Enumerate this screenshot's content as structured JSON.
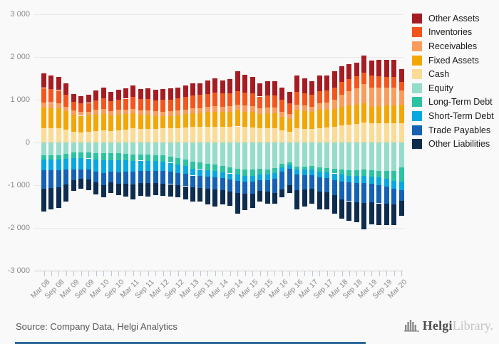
{
  "chart_data": {
    "type": "bar",
    "stacked": true,
    "title": "",
    "xlabel": "",
    "ylabel": "",
    "ylim": [
      -3000,
      3000
    ],
    "grid": true,
    "legend_position": "right",
    "x_label_every": 2,
    "yticks": [
      {
        "v": 3000,
        "label": "3 000"
      },
      {
        "v": 2000,
        "label": "2 000"
      },
      {
        "v": 1000,
        "label": "1 000"
      },
      {
        "v": 0,
        "label": "0"
      },
      {
        "v": -1000,
        "label": "-1 000"
      },
      {
        "v": -2000,
        "label": "-2 000"
      },
      {
        "v": -3000,
        "label": "-3 000"
      }
    ],
    "categories": [
      "Mar 08",
      "Jun 08",
      "Sep 08",
      "Dec 08",
      "Mar 09",
      "Jun 09",
      "Sep 09",
      "Dec 09",
      "Mar 10",
      "Jun 10",
      "Sep 10",
      "Dec 10",
      "Mar 11",
      "Jun 11",
      "Sep 11",
      "Dec 11",
      "Mar 12",
      "Jun 12",
      "Sep 12",
      "Dec 12",
      "Mar 13",
      "Jun 13",
      "Sep 13",
      "Dec 13",
      "Mar 14",
      "Jun 14",
      "Sep 14",
      "Dec 14",
      "Mar 15",
      "Jun 15",
      "Sep 15",
      "Dec 15",
      "Mar 16",
      "Jun 16",
      "Sep 16",
      "Dec 16",
      "Mar 17",
      "Jun 17",
      "Sep 17",
      "Dec 17",
      "Mar 18",
      "Jun 18",
      "Sep 18",
      "Dec 18",
      "Mar 19",
      "Jun 19",
      "Sep 19",
      "Dec 19",
      "Mar 20"
    ],
    "series": [
      {
        "name": "Other Assets",
        "color": "#a51d23",
        "side": "assets",
        "values": [
          335,
          315,
          305,
          270,
          185,
          170,
          185,
          230,
          250,
          215,
          235,
          245,
          260,
          235,
          242,
          240,
          250,
          252,
          260,
          270,
          283,
          280,
          310,
          335,
          305,
          337,
          455,
          415,
          385,
          315,
          335,
          335,
          287,
          274,
          370,
          345,
          320,
          360,
          350,
          375,
          380,
          350,
          310,
          390,
          350,
          380,
          390,
          410,
          302
        ]
      },
      {
        "name": "Inventories",
        "color": "#f4551c",
        "side": "assets",
        "values": [
          335,
          320,
          315,
          280,
          210,
          195,
          200,
          230,
          250,
          230,
          245,
          255,
          280,
          260,
          265,
          262,
          275,
          278,
          285,
          290,
          305,
          305,
          310,
          315,
          310,
          308,
          320,
          305,
          300,
          280,
          290,
          290,
          270,
          250,
          300,
          290,
          280,
          290,
          290,
          290,
          290,
          285,
          280,
          280,
          280,
          270,
          260,
          250,
          195
        ]
      },
      {
        "name": "Receivables",
        "color": "#fa9d5c",
        "side": "assets",
        "values": [
          120,
          120,
          115,
          110,
          95,
          90,
          95,
          105,
          110,
          100,
          105,
          105,
          110,
          105,
          108,
          108,
          110,
          110,
          110,
          110,
          112,
          115,
          120,
          125,
          125,
          130,
          140,
          140,
          135,
          125,
          130,
          130,
          118,
          111,
          130,
          130,
          130,
          150,
          170,
          210,
          280,
          330,
          380,
          445,
          445,
          430,
          420,
          410,
          333
        ]
      },
      {
        "name": "Fixed Assets",
        "color": "#f2a705",
        "side": "assets",
        "values": [
          490,
          475,
          465,
          430,
          400,
          385,
          385,
          390,
          390,
          370,
          370,
          365,
          350,
          340,
          330,
          300,
          280,
          285,
          295,
          310,
          330,
          330,
          345,
          355,
          350,
          355,
          370,
          360,
          355,
          340,
          345,
          345,
          320,
          305,
          430,
          415,
          400,
          420,
          415,
          425,
          440,
          445,
          450,
          445,
          390,
          400,
          410,
          420,
          445
        ]
      },
      {
        "name": "Cash",
        "color": "#fadc96",
        "side": "assets",
        "values": [
          330,
          330,
          330,
          300,
          250,
          240,
          245,
          265,
          280,
          265,
          285,
          300,
          330,
          310,
          315,
          320,
          335,
          335,
          340,
          350,
          360,
          360,
          365,
          370,
          360,
          360,
          375,
          360,
          355,
          330,
          340,
          340,
          285,
          250,
          330,
          320,
          310,
          340,
          345,
          360,
          400,
          420,
          440,
          470,
          445,
          450,
          450,
          450,
          445
        ]
      },
      {
        "name": "Equity",
        "color": "#96dccb",
        "side": "liabilities",
        "values": [
          -305,
          -300,
          -295,
          -270,
          -240,
          -235,
          -240,
          -245,
          -250,
          -250,
          -255,
          -265,
          -280,
          -280,
          -285,
          -295,
          -305,
          -330,
          -360,
          -400,
          -445,
          -465,
          -495,
          -520,
          -545,
          -580,
          -615,
          -640,
          -640,
          -615,
          -625,
          -600,
          -500,
          -472,
          -560,
          -560,
          -555,
          -590,
          -600,
          -620,
          -640,
          -650,
          -655,
          -640,
          -650,
          -660,
          -665,
          -660,
          -583
        ]
      },
      {
        "name": "Long-Term Debt",
        "color": "#2cc3a3",
        "side": "liabilities",
        "values": [
          -90,
          -95,
          -100,
          -110,
          -125,
          -130,
          -135,
          -150,
          -165,
          -160,
          -160,
          -155,
          -150,
          -145,
          -145,
          -142,
          -140,
          -145,
          -150,
          -155,
          -165,
          -160,
          -155,
          -150,
          -148,
          -145,
          -142,
          -140,
          -138,
          -130,
          -128,
          -120,
          -75,
          -56,
          -70,
          -75,
          -80,
          -90,
          -95,
          -105,
          -115,
          -125,
          -130,
          -140,
          -145,
          -160,
          -185,
          -240,
          -334
        ]
      },
      {
        "name": "Short-Term Debt",
        "color": "#05a8e0",
        "side": "liabilities",
        "values": [
          -255,
          -255,
          -250,
          -250,
          -275,
          -265,
          -265,
          -290,
          -305,
          -280,
          -285,
          -270,
          -260,
          -245,
          -240,
          -230,
          -222,
          -210,
          -200,
          -185,
          -165,
          -160,
          -155,
          -150,
          -148,
          -145,
          -142,
          -140,
          -145,
          -135,
          -135,
          -130,
          -100,
          -85,
          -120,
          -125,
          -130,
          -140,
          -145,
          -150,
          -160,
          -160,
          -165,
          -165,
          -170,
          -175,
          -180,
          -185,
          -194
        ]
      },
      {
        "name": "Trade Payables",
        "color": "#1562b4",
        "side": "liabilities",
        "values": [
          -430,
          -420,
          -405,
          -360,
          -240,
          -225,
          -225,
          -250,
          -280,
          -250,
          -265,
          -280,
          -300,
          -280,
          -285,
          -290,
          -300,
          -290,
          -290,
          -285,
          -280,
          -275,
          -280,
          -280,
          -280,
          -280,
          -280,
          -278,
          -275,
          -260,
          -270,
          -330,
          -420,
          -390,
          -360,
          -340,
          -320,
          -330,
          -330,
          -360,
          -420,
          -440,
          -450,
          -475,
          -440,
          -430,
          -400,
          -360,
          -250
        ]
      },
      {
        "name": "Other Liabilities",
        "color": "#0e2c4e",
        "side": "liabilities",
        "values": [
          -530,
          -490,
          -480,
          -400,
          -260,
          -225,
          -245,
          -285,
          -280,
          -240,
          -275,
          -300,
          -340,
          -300,
          -305,
          -273,
          -283,
          -285,
          -290,
          -305,
          -335,
          -330,
          -365,
          -400,
          -329,
          -340,
          -481,
          -382,
          -332,
          -250,
          -282,
          -260,
          -185,
          -187,
          -450,
          -400,
          -355,
          -410,
          -400,
          -425,
          -455,
          -455,
          -460,
          -610,
          -505,
          -505,
          -500,
          -495,
          -359
        ]
      }
    ]
  },
  "footer": {
    "source": "Source: Company Data, Helgi Analytics",
    "brand_primary": "Helgi",
    "brand_secondary": "Library."
  },
  "icons": {
    "logo": "helgi-building-icon"
  },
  "colors": {
    "background": "#f9f9f9",
    "gridline": "#e8e8e8",
    "axis_text": "#8a8a8a",
    "accent_strip": "#2b6698"
  }
}
